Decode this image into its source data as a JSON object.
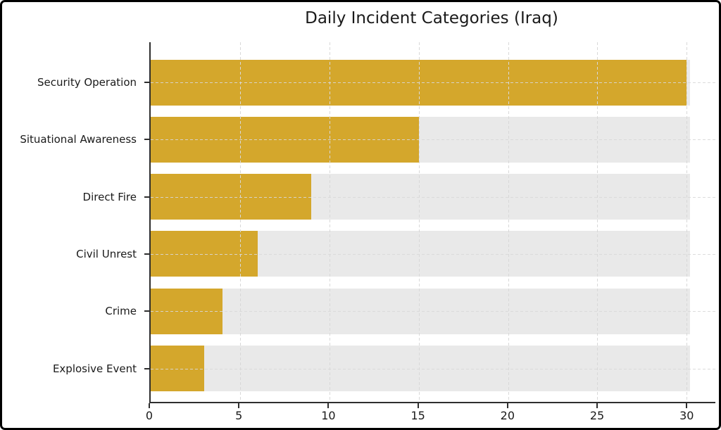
{
  "chart_data": {
    "type": "bar",
    "orientation": "horizontal",
    "title": "Daily Incident Categories (Iraq)",
    "categories": [
      "Security Operation",
      "Situational Awareness",
      "Direct Fire",
      "Civil Unrest",
      "Crime",
      "Explosive Event"
    ],
    "values": [
      30,
      15,
      9,
      6,
      4,
      3
    ],
    "xlabel": "",
    "ylabel": "",
    "xticks": [
      0,
      5,
      10,
      15,
      20,
      25,
      30
    ],
    "xlim": [
      0,
      31.6
    ],
    "grid": true,
    "grid_style": "dashed",
    "legend": false,
    "track_value": 30.2,
    "colors": {
      "bar": "#D4A72C",
      "track": "#E9E9E9",
      "axis": "#2E2E2E",
      "grid": "#D8D8D8",
      "text": "#1A1A1A",
      "figure_border": "#000000",
      "background": "#FFFFFF"
    }
  }
}
